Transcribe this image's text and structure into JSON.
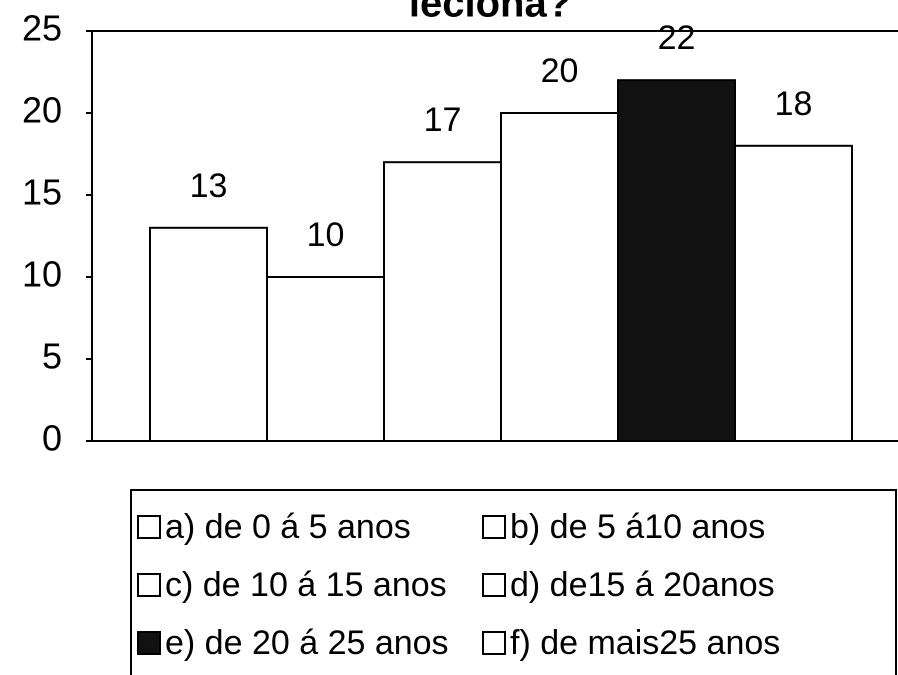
{
  "chart_data": {
    "type": "bar",
    "title": "leciona?",
    "categories": [
      "a) de 0 á 5 anos",
      "b) de 5 á10 anos",
      "c) de 10 á 15 anos",
      "d) de15 á 20anos",
      "e) de 20 á 25 anos",
      "f) de mais25 anos"
    ],
    "values": [
      13,
      10,
      17,
      20,
      22,
      18
    ],
    "colors": [
      "#ffffff",
      "#ffffff",
      "#ffffff",
      "#ffffff",
      "#111111",
      "#ffffff"
    ],
    "ylim": [
      0,
      25
    ],
    "yticks": [
      0,
      5,
      10,
      15,
      20,
      25
    ],
    "legend": "bottom"
  }
}
